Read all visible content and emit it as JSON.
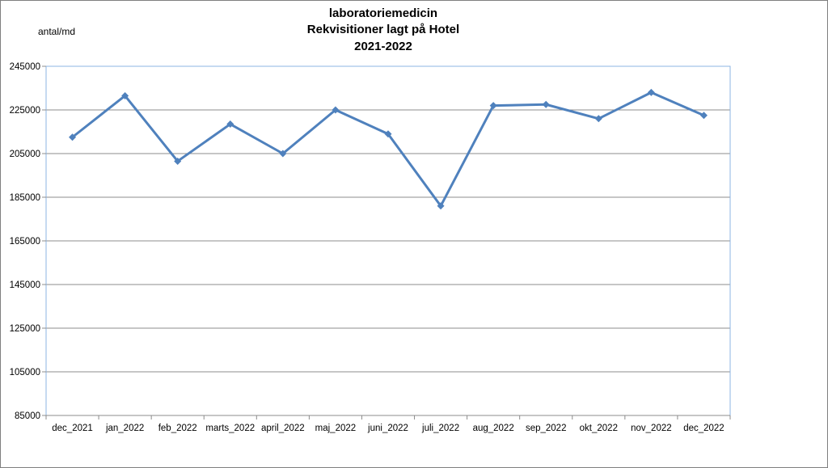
{
  "chart_data": {
    "type": "line",
    "title": [
      "laboratoriemedicin",
      "Rekvisitioner  lagt på Hotel",
      "2021-2022"
    ],
    "ylabel": "antal/md",
    "xlabel": "",
    "categories": [
      "dec_2021",
      "jan_2022",
      "feb_2022",
      "marts_2022",
      "april_2022",
      "maj_2022",
      "juni_2022",
      "juli_2022",
      "aug_2022",
      "sep_2022",
      "okt_2022",
      "nov_2022",
      "dec_2022"
    ],
    "series": [
      {
        "values": [
          212500,
          231500,
          201500,
          218500,
          205000,
          225000,
          214000,
          181000,
          227000,
          227500,
          221000,
          233000,
          222500
        ],
        "color": "#4f81bd",
        "marker": "diamond"
      }
    ],
    "ylim": [
      85000,
      245000
    ],
    "yticks": [
      85000,
      105000,
      125000,
      145000,
      165000,
      185000,
      205000,
      225000,
      245000
    ],
    "grid": true,
    "legend": "none"
  }
}
